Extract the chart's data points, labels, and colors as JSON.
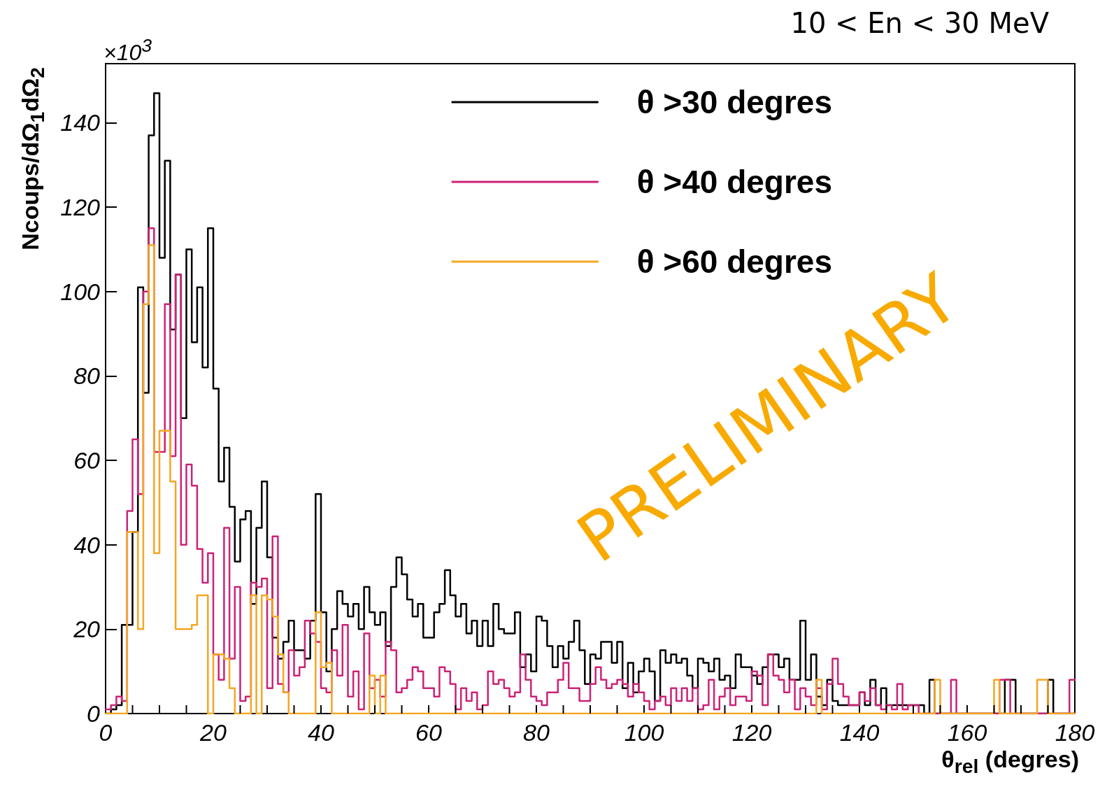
{
  "chart_data": {
    "type": "histogram",
    "title": "10 < En < 30 MeV",
    "xlabel": "θ$_{rel}$ (degres)",
    "ylabel": "Ncoups/dΩ$_{1}$dΩ$_{2}$",
    "annotations": [
      "×10$^{3}$",
      "PRELIMINARY"
    ],
    "bins": [
      0,
      1,
      2,
      3,
      4,
      5,
      6,
      7,
      8,
      9,
      10,
      11,
      12,
      13,
      14,
      15,
      16,
      17,
      18,
      19,
      20,
      21,
      22,
      23,
      24,
      25,
      26,
      27,
      28,
      29,
      30,
      31,
      32,
      33,
      34,
      35,
      36,
      37,
      38,
      39,
      40,
      41,
      42,
      43,
      44,
      45,
      46,
      47,
      48,
      49,
      50,
      51,
      52,
      53,
      54,
      55,
      56,
      57,
      58,
      59,
      60,
      61,
      62,
      63,
      64,
      65,
      66,
      67,
      68,
      69,
      70,
      71,
      72,
      73,
      74,
      75,
      76,
      77,
      78,
      79,
      80,
      81,
      82,
      83,
      84,
      85,
      86,
      87,
      88,
      89,
      90,
      91,
      92,
      93,
      94,
      95,
      96,
      97,
      98,
      99,
      100,
      101,
      102,
      103,
      104,
      105,
      106,
      107,
      108,
      109,
      110,
      111,
      112,
      113,
      114,
      115,
      116,
      117,
      118,
      119,
      120,
      121,
      122,
      123,
      124,
      125,
      126,
      127,
      128,
      129,
      130,
      131,
      132,
      133,
      134,
      135,
      136,
      137,
      138,
      139,
      140,
      141,
      142,
      143,
      144,
      145,
      146,
      147,
      148,
      149,
      150,
      151,
      152,
      153,
      154,
      155,
      156,
      157,
      158,
      159,
      160,
      161,
      162,
      163,
      164,
      165,
      166,
      167,
      168,
      169,
      170,
      171,
      172,
      173,
      174,
      175,
      176,
      177,
      178,
      179,
      180
    ],
    "series": [
      {
        "name": "θ >30 degres",
        "color": "#000000",
        "values": [
          0,
          1,
          2,
          21,
          21,
          43,
          101,
          76,
          137,
          147,
          108,
          131,
          91,
          104,
          70,
          110,
          88,
          101,
          82,
          115,
          77,
          55,
          63,
          49,
          36,
          46,
          48,
          26,
          44,
          55,
          37,
          18,
          13,
          17,
          22,
          15,
          15,
          13,
          22,
          52,
          24,
          10,
          20,
          29,
          26,
          23,
          26,
          20,
          30,
          24,
          21,
          24,
          16,
          30,
          37,
          33,
          27,
          23,
          26,
          18,
          18,
          24,
          26,
          34,
          28,
          23,
          26,
          19,
          22,
          16,
          22,
          16,
          26,
          20,
          19,
          19,
          24,
          11,
          14,
          10,
          23,
          22,
          16,
          11,
          16,
          13,
          17,
          22,
          15,
          7,
          14,
          13,
          17,
          17,
          12,
          17,
          6,
          12,
          5,
          10,
          13,
          10,
          3,
          15,
          12,
          14,
          12,
          13,
          9,
          6,
          13,
          12,
          10,
          13,
          8,
          9,
          6,
          14,
          11,
          11,
          9,
          7,
          11,
          14,
          14,
          11,
          13,
          8,
          8,
          22,
          8,
          14,
          4,
          2,
          8,
          3,
          2,
          2,
          2,
          2,
          5,
          2,
          8,
          2,
          6,
          2,
          2,
          2,
          2,
          2,
          2,
          2,
          0,
          8,
          0,
          0,
          0,
          0,
          0,
          0,
          0,
          0,
          0,
          0,
          0,
          0,
          0,
          8,
          8,
          0,
          0,
          0,
          0,
          0,
          0,
          8,
          0,
          0,
          0,
          0
        ]
      },
      {
        "name": "θ >40 degres",
        "color": "#cc2277",
        "values": [
          1,
          2,
          4,
          3,
          48,
          65,
          52,
          100,
          115,
          62,
          62,
          97,
          61,
          104,
          40,
          59,
          54,
          39,
          31,
          38,
          14,
          8,
          44,
          13,
          30,
          3,
          4,
          31,
          30,
          32,
          6,
          42,
          7,
          5,
          15,
          9,
          11,
          22,
          19,
          17,
          6,
          5,
          15,
          9,
          21,
          4,
          10,
          1,
          19,
          6,
          8,
          4,
          17,
          15,
          5,
          6,
          8,
          11,
          10,
          6,
          6,
          4,
          11,
          10,
          7,
          1,
          6,
          3,
          5,
          1,
          2,
          10,
          7,
          8,
          6,
          4,
          5,
          14,
          8,
          4,
          3,
          2,
          5,
          5,
          8,
          12,
          6,
          6,
          3,
          3,
          7,
          11,
          8,
          6,
          7,
          8,
          7,
          4,
          7,
          5,
          3,
          1,
          3,
          4,
          2,
          6,
          3,
          6,
          3,
          6,
          1,
          2,
          8,
          1,
          4,
          6,
          2,
          4,
          4,
          3,
          10,
          9,
          2,
          14,
          9,
          8,
          5,
          8,
          1,
          6,
          4,
          2,
          6,
          1,
          7,
          13,
          7,
          4,
          2,
          2,
          5,
          3,
          6,
          2,
          1,
          2,
          1,
          7,
          1,
          2,
          2,
          0,
          0,
          0,
          0,
          0,
          0,
          8,
          0,
          0,
          0,
          0,
          0,
          0,
          0,
          0,
          8,
          8,
          0,
          0,
          0,
          0,
          0,
          0,
          0,
          0,
          0,
          0,
          0,
          8
        ]
      },
      {
        "name": "θ >60 degres",
        "color": "#f5a623",
        "values": [
          0,
          0,
          0,
          0,
          43,
          43,
          20,
          97,
          111,
          38,
          67,
          67,
          55,
          20,
          20,
          20,
          21,
          28,
          28,
          0,
          14,
          14,
          13,
          6,
          0,
          0,
          0,
          28,
          0,
          28,
          27,
          23,
          14,
          5,
          0,
          0,
          0,
          0,
          0,
          24,
          11,
          12,
          0,
          0,
          0,
          0,
          0,
          0,
          0,
          9,
          0,
          9,
          0,
          0,
          0,
          0,
          0,
          0,
          0,
          0,
          0,
          0,
          0,
          0,
          0,
          0,
          0,
          0,
          0,
          0,
          0,
          0,
          0,
          0,
          0,
          0,
          0,
          0,
          0,
          0,
          0,
          0,
          0,
          0,
          0,
          0,
          0,
          0,
          0,
          0,
          0,
          0,
          0,
          0,
          0,
          0,
          0,
          0,
          0,
          0,
          0,
          0,
          0,
          0,
          0,
          0,
          0,
          0,
          0,
          0,
          0,
          0,
          0,
          0,
          0,
          0,
          0,
          0,
          0,
          0,
          0,
          0,
          0,
          0,
          0,
          0,
          0,
          0,
          0,
          0,
          0,
          0,
          8,
          0,
          0,
          0,
          0,
          0,
          0,
          0,
          0,
          0,
          0,
          0,
          0,
          0,
          0,
          0,
          0,
          0,
          0,
          0,
          0,
          0,
          8,
          0,
          0,
          0,
          0,
          0,
          0,
          0,
          0,
          0,
          0,
          8,
          0,
          0,
          0,
          0,
          0,
          0,
          0,
          8,
          8,
          0,
          0,
          0,
          0,
          0
        ]
      }
    ],
    "xlim": [
      0,
      180
    ],
    "xticks": [
      0,
      20,
      40,
      60,
      80,
      100,
      120,
      140,
      160,
      180
    ],
    "ylim": [
      0,
      154
    ],
    "yticks": [
      0,
      20,
      40,
      60,
      80,
      100,
      120,
      140
    ],
    "grid": false,
    "legend": "top right"
  }
}
